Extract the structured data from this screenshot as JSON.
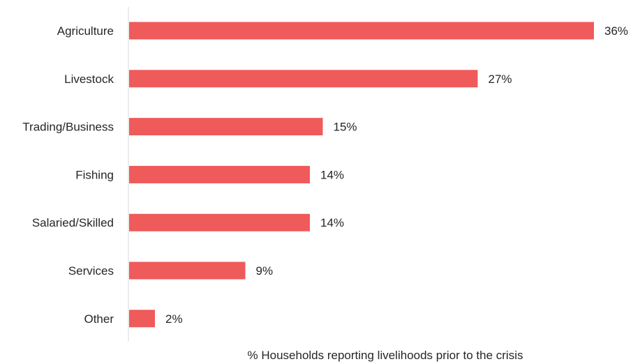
{
  "chart_data": {
    "type": "bar",
    "orientation": "horizontal",
    "categories": [
      "Agriculture",
      "Livestock",
      "Trading/Business",
      "Fishing",
      "Salaried/Skilled",
      "Services",
      "Other"
    ],
    "values": [
      36,
      27,
      15,
      14,
      14,
      9,
      2
    ],
    "value_labels": [
      "36%",
      "27%",
      "15%",
      "14%",
      "14%",
      "9%",
      "2%"
    ],
    "xlabel": "% Households reporting livelihoods prior to the crisis",
    "ylabel": "",
    "xlim": [
      0,
      36
    ],
    "grid": false,
    "legend": "none",
    "bar_color": "#ef5a5a",
    "axis_color": "#d9d9d9",
    "text_color": "#262626"
  }
}
